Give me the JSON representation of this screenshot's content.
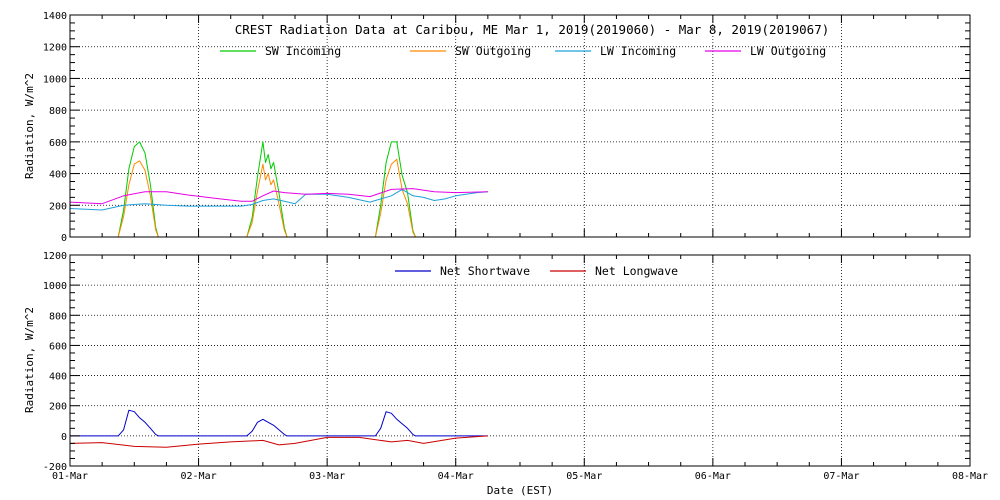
{
  "window_title": "CREST Radiation Data at Caribou, ME",
  "chart_data": [
    {
      "type": "line",
      "title": "CREST Radiation Data at Caribou, ME   Mar  1, 2019(2019060) - Mar  8, 2019(2019067)",
      "xlabel": "",
      "ylabel": "Radiation, W/m^2",
      "ylim": [
        0,
        1400
      ],
      "yticks": [
        0,
        200,
        400,
        600,
        800,
        1000,
        1200,
        1400
      ],
      "xlim": [
        "2019-03-01",
        "2019-03-08"
      ],
      "grid": true,
      "legend_position": "top",
      "series": [
        {
          "name": "SW Incoming",
          "color": "#00cc00",
          "x": [
            "2019-03-01T09:00",
            "2019-03-01T10:00",
            "2019-03-01T11:00",
            "2019-03-01T12:00",
            "2019-03-01T13:00",
            "2019-03-01T14:00",
            "2019-03-01T15:00",
            "2019-03-01T16:00",
            "2019-03-01T16:30",
            "2019-03-02T09:00",
            "2019-03-02T10:00",
            "2019-03-02T11:00",
            "2019-03-02T12:00",
            "2019-03-02T12:30",
            "2019-03-02T13:00",
            "2019-03-02T13:30",
            "2019-03-02T14:00",
            "2019-03-02T15:00",
            "2019-03-02T16:00",
            "2019-03-02T16:30",
            "2019-03-03T09:00",
            "2019-03-03T10:00",
            "2019-03-03T11:00",
            "2019-03-03T12:00",
            "2019-03-03T13:00",
            "2019-03-03T14:00",
            "2019-03-03T15:00",
            "2019-03-03T16:00",
            "2019-03-03T16:30"
          ],
          "y": [
            0,
            170,
            430,
            570,
            600,
            530,
            330,
            60,
            0,
            0,
            120,
            380,
            600,
            470,
            520,
            430,
            470,
            280,
            60,
            0,
            0,
            200,
            470,
            600,
            600,
            390,
            280,
            40,
            0
          ]
        },
        {
          "name": "SW Outgoing",
          "color": "#ff8800",
          "x": [
            "2019-03-01T09:00",
            "2019-03-01T10:00",
            "2019-03-01T11:00",
            "2019-03-01T12:00",
            "2019-03-01T13:00",
            "2019-03-01T14:00",
            "2019-03-01T15:00",
            "2019-03-01T16:00",
            "2019-03-01T16:30",
            "2019-03-02T09:00",
            "2019-03-02T10:00",
            "2019-03-02T11:00",
            "2019-03-02T12:00",
            "2019-03-02T12:30",
            "2019-03-02T13:00",
            "2019-03-02T13:30",
            "2019-03-02T14:00",
            "2019-03-02T15:00",
            "2019-03-02T16:00",
            "2019-03-02T16:30",
            "2019-03-03T09:00",
            "2019-03-03T10:00",
            "2019-03-03T11:00",
            "2019-03-03T12:00",
            "2019-03-03T13:00",
            "2019-03-03T14:00",
            "2019-03-03T15:00",
            "2019-03-03T16:00",
            "2019-03-03T16:30"
          ],
          "y": [
            0,
            130,
            330,
            460,
            480,
            420,
            260,
            45,
            0,
            0,
            90,
            290,
            460,
            360,
            400,
            330,
            360,
            210,
            45,
            0,
            0,
            150,
            360,
            460,
            490,
            300,
            210,
            30,
            0
          ]
        },
        {
          "name": "LW Incoming",
          "color": "#1ea0dc",
          "x": [
            "2019-03-01T00:00",
            "2019-03-01T06:00",
            "2019-03-01T10:00",
            "2019-03-01T14:00",
            "2019-03-01T18:00",
            "2019-03-01T22:00",
            "2019-03-02T04:00",
            "2019-03-02T08:00",
            "2019-03-02T10:00",
            "2019-03-02T12:00",
            "2019-03-02T14:00",
            "2019-03-02T16:00",
            "2019-03-02T18:00",
            "2019-03-02T20:00",
            "2019-03-03T00:00",
            "2019-03-03T04:00",
            "2019-03-03T08:00",
            "2019-03-03T10:00",
            "2019-03-03T12:00",
            "2019-03-03T14:00",
            "2019-03-03T16:00",
            "2019-03-03T18:00",
            "2019-03-03T20:00",
            "2019-03-03T22:00",
            "2019-03-04T00:00",
            "2019-03-04T04:00",
            "2019-03-04T06:00"
          ],
          "y": [
            180,
            170,
            200,
            210,
            200,
            195,
            195,
            195,
            205,
            230,
            240,
            225,
            210,
            270,
            270,
            250,
            220,
            240,
            260,
            300,
            260,
            250,
            230,
            240,
            260,
            280,
            285
          ]
        },
        {
          "name": "LW Outgoing",
          "color": "#e600e6",
          "x": [
            "2019-03-01T00:00",
            "2019-03-01T06:00",
            "2019-03-01T10:00",
            "2019-03-01T14:00",
            "2019-03-01T18:00",
            "2019-03-01T22:00",
            "2019-03-02T04:00",
            "2019-03-02T08:00",
            "2019-03-02T10:00",
            "2019-03-02T12:00",
            "2019-03-02T14:00",
            "2019-03-02T16:00",
            "2019-03-02T20:00",
            "2019-03-03T00:00",
            "2019-03-03T04:00",
            "2019-03-03T08:00",
            "2019-03-03T12:00",
            "2019-03-03T16:00",
            "2019-03-03T20:00",
            "2019-03-04T00:00",
            "2019-03-04T06:00"
          ],
          "y": [
            220,
            210,
            260,
            285,
            285,
            265,
            240,
            225,
            225,
            260,
            290,
            280,
            270,
            275,
            270,
            255,
            300,
            305,
            285,
            280,
            285
          ]
        }
      ]
    },
    {
      "type": "line",
      "title": "",
      "xlabel": "Date (EST)",
      "ylabel": "Radiation, W/m^2",
      "ylim": [
        -200,
        1200
      ],
      "yticks": [
        -200,
        0,
        200,
        400,
        600,
        800,
        1000,
        1200
      ],
      "xlim": [
        "2019-03-01",
        "2019-03-08"
      ],
      "xticks": [
        "01-Mar",
        "02-Mar",
        "03-Mar",
        "04-Mar",
        "05-Mar",
        "06-Mar",
        "07-Mar",
        "08-Mar"
      ],
      "grid": true,
      "legend_position": "top",
      "series": [
        {
          "name": "Net Shortwave",
          "color": "#0000cc",
          "x": [
            "2019-03-01T00:00",
            "2019-03-01T09:00",
            "2019-03-01T10:00",
            "2019-03-01T11:00",
            "2019-03-01T12:00",
            "2019-03-01T13:00",
            "2019-03-01T14:00",
            "2019-03-01T15:00",
            "2019-03-01T16:00",
            "2019-03-01T16:30",
            "2019-03-02T09:00",
            "2019-03-02T10:00",
            "2019-03-02T11:00",
            "2019-03-02T12:00",
            "2019-03-02T13:00",
            "2019-03-02T14:00",
            "2019-03-02T15:00",
            "2019-03-02T16:00",
            "2019-03-02T16:30",
            "2019-03-03T09:00",
            "2019-03-03T10:00",
            "2019-03-03T11:00",
            "2019-03-03T12:00",
            "2019-03-03T13:00",
            "2019-03-03T14:00",
            "2019-03-03T15:00",
            "2019-03-03T16:00",
            "2019-03-03T16:30",
            "2019-03-04T06:00"
          ],
          "y": [
            0,
            0,
            40,
            170,
            160,
            120,
            90,
            50,
            10,
            0,
            0,
            30,
            90,
            110,
            90,
            70,
            40,
            10,
            0,
            0,
            50,
            160,
            150,
            110,
            80,
            50,
            10,
            0,
            0
          ]
        },
        {
          "name": "Net Longwave",
          "color": "#cc0000",
          "x": [
            "2019-03-01T00:00",
            "2019-03-01T06:00",
            "2019-03-01T12:00",
            "2019-03-01T18:00",
            "2019-03-02T00:00",
            "2019-03-02T06:00",
            "2019-03-02T12:00",
            "2019-03-02T15:00",
            "2019-03-02T18:00",
            "2019-03-03T00:00",
            "2019-03-03T06:00",
            "2019-03-03T12:00",
            "2019-03-03T15:00",
            "2019-03-03T18:00",
            "2019-03-04T00:00",
            "2019-03-04T06:00"
          ],
          "y": [
            -50,
            -45,
            -70,
            -75,
            -55,
            -40,
            -30,
            -60,
            -50,
            -10,
            -10,
            -40,
            -30,
            -50,
            -15,
            0
          ]
        }
      ]
    }
  ]
}
